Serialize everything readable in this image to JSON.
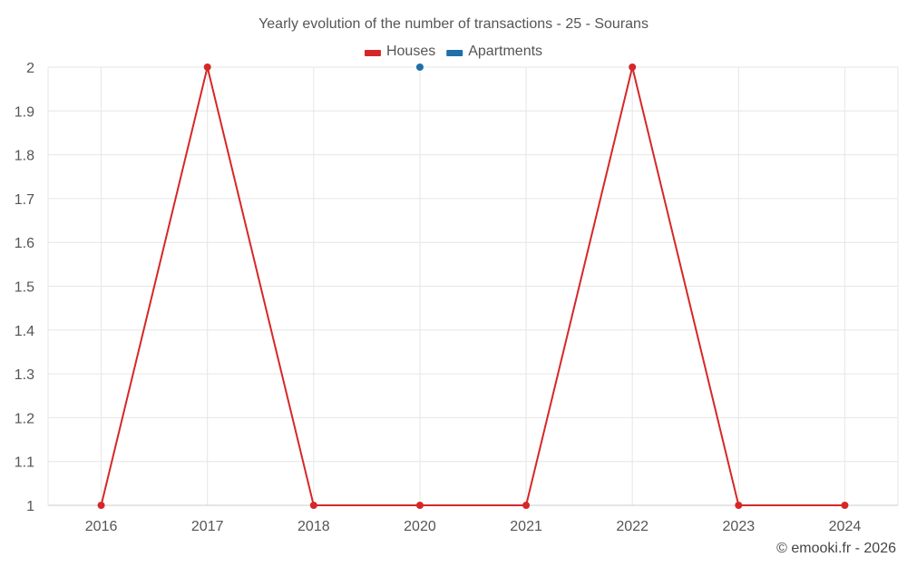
{
  "chart_data": {
    "type": "line",
    "title": "Yearly evolution of the number of transactions - 25 - Sourans",
    "categories": [
      "2016",
      "2017",
      "2018",
      "2020",
      "2021",
      "2022",
      "2023",
      "2024"
    ],
    "series": [
      {
        "name": "Houses",
        "color": "#d62728",
        "values": [
          1,
          2,
          1,
          1,
          1,
          2,
          1,
          1
        ]
      },
      {
        "name": "Apartments",
        "color": "#1f6fa8",
        "values": [
          null,
          null,
          null,
          2,
          null,
          null,
          null,
          null
        ]
      }
    ],
    "y_ticks": [
      "1",
      "1.1",
      "1.2",
      "1.3",
      "1.4",
      "1.5",
      "1.6",
      "1.7",
      "1.8",
      "1.9",
      "2"
    ],
    "ylim": [
      1,
      2
    ],
    "xlabel": "",
    "ylabel": "",
    "grid": true,
    "legend_position": "top-center"
  },
  "credit": "© emooki.fr - 2026"
}
